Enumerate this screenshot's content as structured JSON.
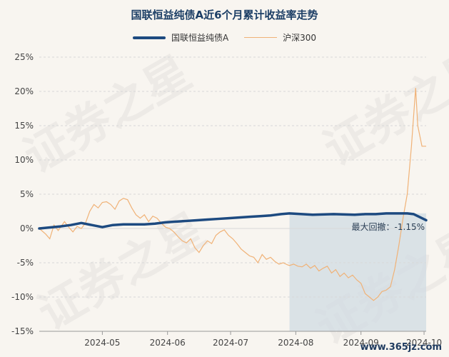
{
  "watermark": {
    "text": "证券之星",
    "site": "www.365jz.com"
  },
  "chart_data": {
    "type": "line",
    "title": "国联恒益纯债A近6个月累计收益率走势",
    "xlabel": "",
    "ylabel": "",
    "ylim": [
      -15,
      25
    ],
    "yticks": [
      "25%",
      "20%",
      "15%",
      "10%",
      "5%",
      "0%",
      "-5%",
      "-10%",
      "-15%"
    ],
    "ytick_values": [
      25,
      20,
      15,
      10,
      5,
      0,
      -5,
      -10,
      -15
    ],
    "xticks": [
      "2024-05",
      "2024-06",
      "2024-07",
      "2024-08",
      "2024-09",
      "2024-10"
    ],
    "xtick_positions": [
      30,
      61,
      91,
      122,
      153,
      183
    ],
    "xrange": [
      0,
      184
    ],
    "grid": true,
    "legend_position": "top",
    "colors": {
      "fund": "#1d4a80",
      "index": "#f0b277",
      "shade": "#d0dbe3"
    },
    "drawdown": {
      "label": "最大回撤：-1.15%",
      "start_day": 119,
      "end_day": 184
    },
    "series": [
      {
        "name": "国联恒益纯债A",
        "x": [
          0,
          10,
          15,
          20,
          25,
          30,
          35,
          40,
          50,
          55,
          60,
          65,
          70,
          75,
          80,
          85,
          90,
          95,
          100,
          105,
          110,
          115,
          119,
          125,
          130,
          140,
          150,
          155,
          160,
          165,
          170,
          175,
          178,
          180,
          182,
          184
        ],
        "values": [
          0.0,
          0.3,
          0.5,
          0.8,
          0.5,
          0.2,
          0.5,
          0.6,
          0.6,
          0.7,
          0.9,
          1.0,
          1.1,
          1.2,
          1.3,
          1.4,
          1.5,
          1.6,
          1.7,
          1.8,
          1.9,
          2.1,
          2.2,
          2.1,
          2.0,
          2.1,
          2.0,
          2.1,
          2.1,
          2.2,
          2.2,
          2.2,
          2.1,
          1.8,
          1.5,
          1.2
        ]
      },
      {
        "name": "沪深300",
        "x": [
          0,
          3,
          5,
          7,
          9,
          12,
          14,
          16,
          18,
          20,
          22,
          24,
          26,
          28,
          30,
          32,
          34,
          36,
          38,
          40,
          42,
          44,
          46,
          48,
          50,
          52,
          54,
          56,
          58,
          60,
          62,
          64,
          66,
          68,
          70,
          72,
          74,
          76,
          78,
          80,
          82,
          84,
          86,
          88,
          90,
          92,
          94,
          96,
          98,
          100,
          102,
          104,
          106,
          108,
          110,
          112,
          114,
          116,
          118,
          119,
          121,
          123,
          125,
          127,
          129,
          131,
          133,
          135,
          137,
          139,
          141,
          143,
          145,
          147,
          149,
          151,
          153,
          155,
          157,
          159,
          161,
          163,
          165,
          167,
          169,
          171,
          173,
          175,
          177,
          179,
          180,
          182,
          184
        ],
        "values": [
          0.0,
          -0.8,
          -1.5,
          0.5,
          -0.3,
          1.0,
          0.2,
          -0.5,
          0.3,
          0.0,
          0.8,
          2.5,
          3.5,
          3.0,
          3.8,
          3.9,
          3.5,
          2.8,
          4.0,
          4.4,
          4.2,
          3.0,
          2.0,
          1.5,
          2.0,
          1.0,
          1.8,
          1.5,
          0.8,
          0.2,
          0.0,
          -0.5,
          -1.2,
          -1.8,
          -2.1,
          -1.5,
          -2.8,
          -3.5,
          -2.5,
          -1.8,
          -2.2,
          -1.0,
          -0.5,
          -0.2,
          -1.0,
          -1.5,
          -2.2,
          -3.0,
          -3.5,
          -4.0,
          -4.2,
          -5.0,
          -3.8,
          -4.5,
          -4.2,
          -4.8,
          -5.2,
          -5.0,
          -5.3,
          -5.4,
          -5.2,
          -5.5,
          -5.6,
          -5.2,
          -5.8,
          -5.4,
          -6.2,
          -5.8,
          -5.5,
          -6.5,
          -6.0,
          -7.0,
          -6.5,
          -7.2,
          -6.8,
          -7.5,
          -8.0,
          -9.5,
          -10.0,
          -10.5,
          -10.0,
          -9.2,
          -9.0,
          -8.5,
          -6.0,
          -2.5,
          1.5,
          5.0,
          12.0,
          20.5,
          15.0,
          12.0,
          12.0
        ]
      }
    ]
  }
}
